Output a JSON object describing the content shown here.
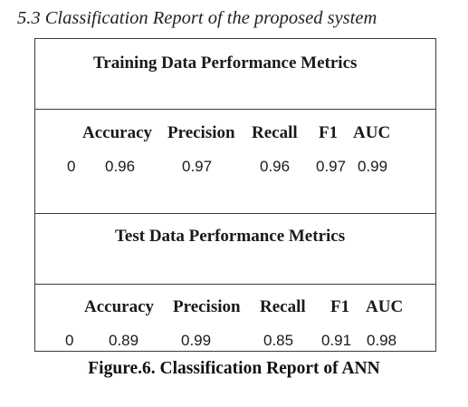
{
  "section_heading": "5.3 Classification Report of the proposed system",
  "training": {
    "title": "Training Data Performance Metrics",
    "headers": [
      "Accuracy",
      "Precision",
      "Recall",
      "F1",
      "AUC"
    ],
    "row_index": "0",
    "values": [
      "0.96",
      "0.97",
      "0.96",
      "0.97",
      "0.99"
    ]
  },
  "test": {
    "title": "Test Data Performance Metrics",
    "headers": [
      "Accuracy",
      "Precision",
      "Recall",
      "F1",
      "AUC"
    ],
    "row_index": "0",
    "values": [
      "0.89",
      "0.99",
      "0.85",
      "0.91",
      "0.98"
    ]
  },
  "caption": "Figure.6. Classification Report of ANN"
}
